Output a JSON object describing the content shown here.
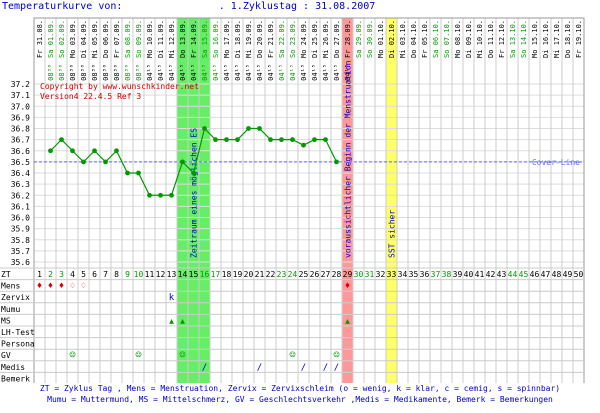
{
  "header": {
    "title": "Temperaturkurve von:",
    "cycle_text": ". 1.Zyklustag : 31.08.2007"
  },
  "copyright": "Copyright by www.wunschkinder.net",
  "version": "Version4 22.4.5 Ref 3",
  "colors": {
    "curve": "#009900",
    "coverline": "#6666ff",
    "ovulation_band": "#66ee66",
    "menstruation_band": "#ff9999",
    "sst_band": "#ffff66",
    "weekend_text": "#009900",
    "weekday_text": "#000000",
    "blue_text": "#0000cc",
    "red_text": "#cc0000"
  },
  "chart_data": {
    "type": "line",
    "dates": [
      "Fr 31.08.",
      "Sa 01.09.",
      "So 02.09.",
      "Mo 03.09.",
      "Di 04.09.",
      "Mi 05.09.",
      "Do 06.09.",
      "Fr 07.09.",
      "Sa 08.09.",
      "So 09.09.",
      "Mo 10.09.",
      "Di 11.09.",
      "Mi 12.09.",
      "Do 13.09.",
      "Fr 14.09.",
      "Sa 15.09.",
      "So 16.09.",
      "Mo 17.09.",
      "Di 18.09.",
      "Mi 19.09.",
      "Do 20.09.",
      "Fr 21.09.",
      "Sa 22.09.",
      "So 23.09.",
      "Mo 24.09.",
      "Di 25.09.",
      "Mi 26.09.",
      "Do 27.09.",
      "Fr 28.09.",
      "Sa 29.09.",
      "So 30.09.",
      "Mo 01.10.",
      "Di 02.10.",
      "Mi 03.10.",
      "Do 04.10.",
      "Fr 05.10.",
      "Sa 06.10.",
      "So 07.10.",
      "Mo 08.10.",
      "Di 09.10.",
      "Mi 10.10.",
      "Do 11.10.",
      "Fr 12.10.",
      "Sa 13.10.",
      "So 14.10.",
      "Mo 15.10.",
      "Di 16.10.",
      "Mi 17.10.",
      "Do 18.10.",
      "Fr 19.10."
    ],
    "times": [
      "",
      "08³⁰",
      "08³⁰",
      "08³⁰",
      "08³⁰",
      "08³⁰",
      "08³⁰",
      "08³⁰",
      "08³⁰",
      "08³⁰",
      "04¹⁵",
      "04¹⁵",
      "04¹⁵",
      "04¹⁵",
      "04¹⁵",
      "04¹⁵",
      "04¹⁵",
      "04¹⁵",
      "04¹⁵",
      "04¹⁵",
      "04¹⁵",
      "04¹⁵",
      "04¹⁵",
      "04¹⁵",
      "04¹⁵",
      "04¹⁵",
      "04¹⁵",
      "04¹⁵",
      "04¹⁵",
      "",
      "",
      "",
      "",
      "",
      "",
      "",
      "",
      "",
      "",
      "",
      "",
      "",
      "",
      "",
      "",
      "",
      "",
      "",
      "",
      ""
    ],
    "zt_days": [
      1,
      2,
      3,
      4,
      5,
      6,
      7,
      8,
      9,
      10,
      11,
      12,
      13,
      14,
      15,
      16,
      17,
      18,
      19,
      20,
      21,
      22,
      23,
      24,
      25,
      26,
      27,
      28,
      29,
      30,
      31,
      32,
      33,
      34,
      35,
      36,
      37,
      38,
      39,
      40,
      41,
      42,
      43,
      44,
      45,
      46,
      47,
      48,
      49,
      50
    ],
    "temperatures": [
      null,
      36.6,
      36.7,
      36.6,
      36.5,
      36.6,
      36.5,
      36.6,
      36.4,
      36.4,
      36.2,
      36.2,
      36.2,
      36.5,
      36.4,
      36.8,
      36.7,
      36.7,
      36.7,
      36.8,
      36.8,
      36.7,
      36.7,
      36.7,
      36.65,
      36.7,
      36.7,
      36.5,
      null,
      null,
      null,
      null,
      null,
      null,
      null,
      null,
      null,
      null,
      null,
      null,
      null,
      null,
      null,
      null,
      null,
      null,
      null,
      null,
      null,
      null
    ],
    "coverline": 36.5,
    "coverline_label": "Cover-Line",
    "ylim": [
      35.6,
      37.2
    ],
    "yticks": [
      "37.2",
      "37.1",
      "37.0",
      "36.9",
      "36.8",
      "36.7",
      "36.6",
      "36.5",
      "36.4",
      "36.3",
      "36.2",
      "36.1",
      "36.0",
      "35.9",
      "35.8",
      "35.7",
      "35.6"
    ],
    "ovulation_band_days": [
      14,
      16
    ],
    "ovulation_label": "Zeitraum eines möglichen ES",
    "menstruation_day": 29,
    "menstruation_label": "voraussichtlicher Beginn der Menstruation",
    "sst_day": 33,
    "sst_label": "SST sicher"
  },
  "rows": {
    "labels": [
      "ZT",
      "Mens",
      "Zervix",
      "Mumu",
      "MS",
      "LH-Test",
      "Persona",
      "GV",
      "Medis",
      "Bemerk"
    ],
    "mens": [
      {
        "day": 1,
        "symbol": "♦"
      },
      {
        "day": 2,
        "symbol": "♦"
      },
      {
        "day": 3,
        "symbol": "♦"
      },
      {
        "day": 4,
        "symbol": "♢"
      },
      {
        "day": 5,
        "symbol": "♢"
      },
      {
        "day": 29,
        "symbol": "♦"
      }
    ],
    "zervix": [
      {
        "day": 13,
        "symbol": "k"
      }
    ],
    "ms": [
      {
        "day": 13,
        "symbol": "▲"
      },
      {
        "day": 14,
        "symbol": "▲"
      },
      {
        "day": 29,
        "symbol": "▲"
      }
    ],
    "gv": [
      {
        "day": 4,
        "symbol": "☺"
      },
      {
        "day": 10,
        "symbol": "☺"
      },
      {
        "day": 14,
        "symbol": "☺"
      },
      {
        "day": 24,
        "symbol": "☺"
      },
      {
        "day": 28,
        "symbol": "☺"
      }
    ],
    "medis": [
      {
        "day": 16,
        "symbol": "/"
      },
      {
        "day": 21,
        "symbol": "/"
      },
      {
        "day": 25,
        "symbol": "/"
      },
      {
        "day": 27,
        "symbol": "/"
      },
      {
        "day": 28,
        "symbol": "/"
      }
    ]
  },
  "footer": {
    "line1": "ZT = Zyklus Tag , Mens = Menstruation, Zervix = Zervixschleim (o = wenig, k = klar, c = cemig, s = spinnbar)",
    "line2": "Mumu = Muttermund, MS = Mittelschmerz, GV = Geschlechtsverkehr ,Medis = Medikamente, Bemerk = Bemerkungen"
  }
}
